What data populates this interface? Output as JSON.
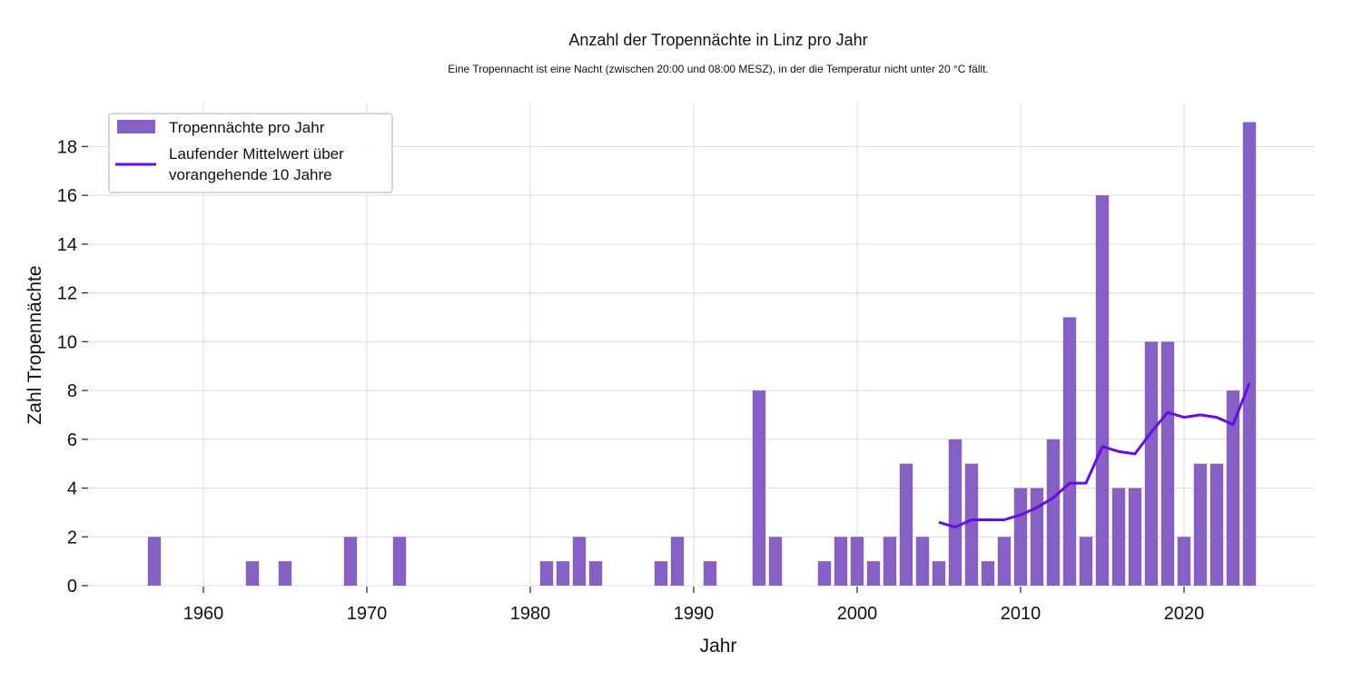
{
  "chart_data": {
    "type": "bar",
    "title": "Anzahl der Tropennächte in Linz pro Jahr",
    "subtitle": "Eine Tropennacht ist eine Nacht (zwischen 20:00 und 08:00 MESZ), in der die Temperatur nicht unter 20 °C fällt.",
    "xlabel": "Jahr",
    "ylabel": "Zahl Tropennächte",
    "xlim": [
      1953,
      2028
    ],
    "ylim": [
      0,
      19.8
    ],
    "xticks": [
      1960,
      1970,
      1980,
      1990,
      2000,
      2010,
      2020
    ],
    "yticks": [
      0,
      2,
      4,
      6,
      8,
      10,
      12,
      14,
      16,
      18
    ],
    "grid": true,
    "legend_position": "top-left",
    "colors": {
      "bar": "#8660c5",
      "line": "#6a0de4",
      "grid": "#dcdcdc"
    },
    "series": [
      {
        "name": "Tropennächte pro Jahr",
        "kind": "bar",
        "x": [
          1957,
          1963,
          1965,
          1969,
          1972,
          1981,
          1982,
          1983,
          1984,
          1988,
          1989,
          1991,
          1994,
          1995,
          1998,
          1999,
          2000,
          2001,
          2002,
          2003,
          2004,
          2005,
          2006,
          2007,
          2008,
          2009,
          2010,
          2011,
          2012,
          2013,
          2014,
          2015,
          2016,
          2017,
          2018,
          2019,
          2020,
          2021,
          2022,
          2023,
          2024
        ],
        "values": [
          2,
          1,
          1,
          2,
          2,
          1,
          1,
          2,
          1,
          1,
          2,
          1,
          8,
          2,
          1,
          2,
          2,
          1,
          2,
          5,
          2,
          1,
          6,
          5,
          1,
          2,
          4,
          4,
          6,
          11,
          2,
          16,
          4,
          4,
          10,
          10,
          2,
          5,
          5,
          8,
          19
        ]
      },
      {
        "name": "Laufender Mittelwert über vorangehende 10 Jahre",
        "legend_lines": [
          "Laufender Mittelwert über",
          "vorangehende 10 Jahre"
        ],
        "kind": "line",
        "x": [
          2005,
          2006,
          2007,
          2008,
          2009,
          2010,
          2011,
          2012,
          2013,
          2014,
          2015,
          2016,
          2017,
          2018,
          2019,
          2020,
          2021,
          2022,
          2023,
          2024
        ],
        "values": [
          2.6,
          2.4,
          2.7,
          2.7,
          2.7,
          2.9,
          3.2,
          3.6,
          4.2,
          4.2,
          5.7,
          5.5,
          5.4,
          6.3,
          7.1,
          6.9,
          7.0,
          6.9,
          6.6,
          8.3
        ]
      }
    ]
  }
}
